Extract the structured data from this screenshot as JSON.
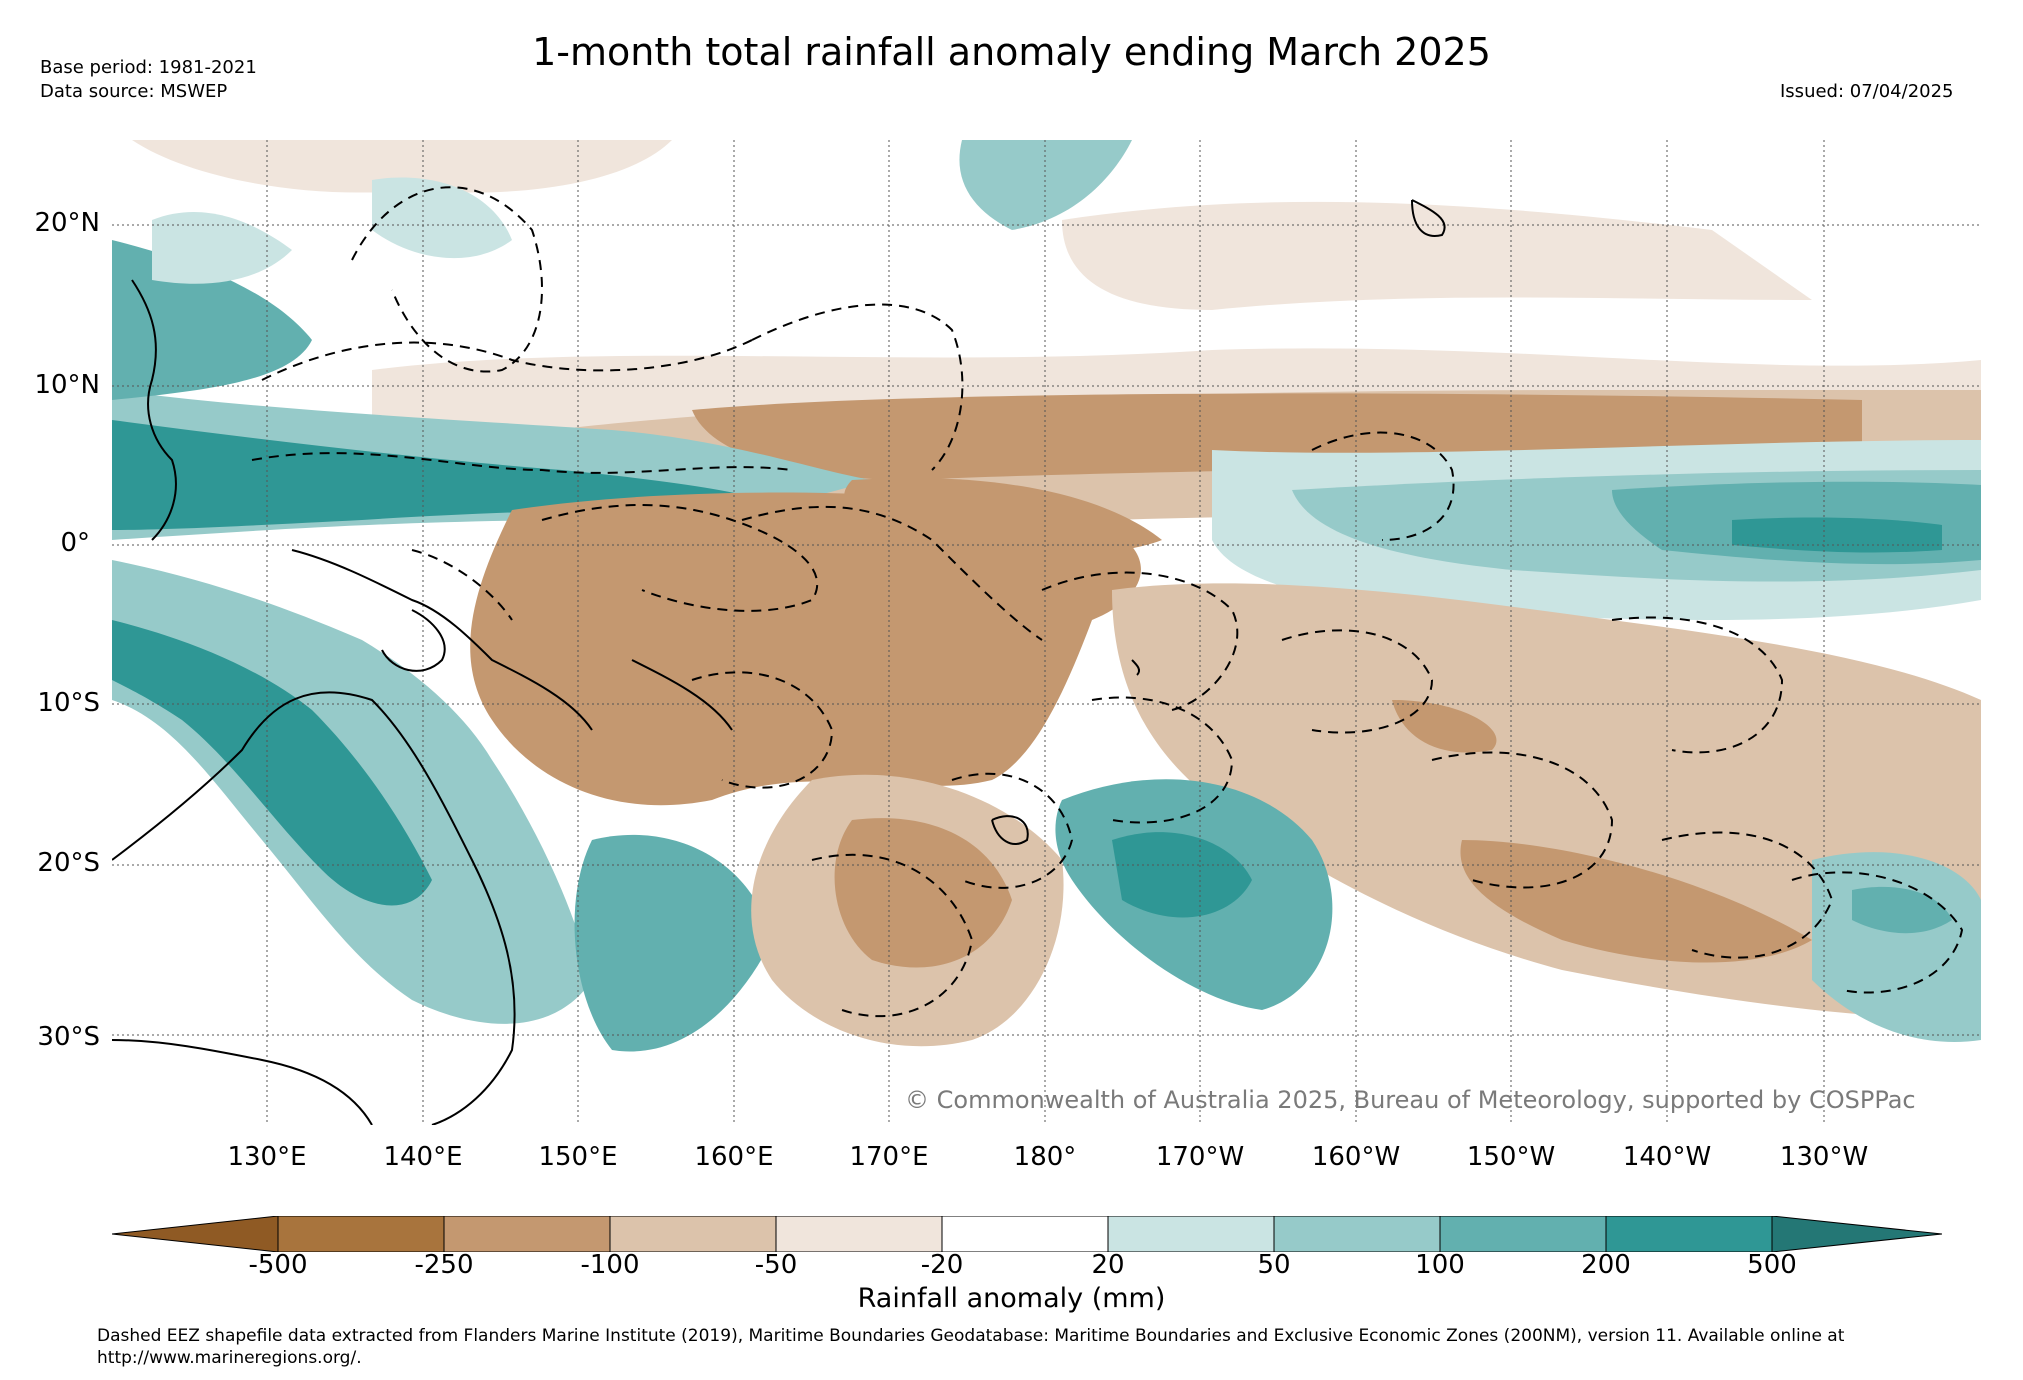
{
  "header": {
    "title": "1-month total rainfall anomaly ending March 2025",
    "base_period": "Base period: 1981-2021",
    "data_source": "Data source: MSWEP",
    "issued": "Issued: 07/04/2025"
  },
  "map": {
    "lat_labels": [
      "20°N",
      "10°N",
      "0°",
      "10°S",
      "20°S",
      "30°S"
    ],
    "lon_labels": [
      "130°E",
      "140°E",
      "150°E",
      "160°E",
      "170°E",
      "180°",
      "170°W",
      "160°W",
      "150°W",
      "140°W",
      "130°W"
    ],
    "copyright": "© Commonwealth of Australia 2025, Bureau of Meteorology, supported by COSPPac"
  },
  "colorbar": {
    "label": "Rainfall anomaly (mm)",
    "ticks": [
      "-500",
      "-250",
      "-100",
      "-50",
      "-20",
      "20",
      "50",
      "100",
      "200",
      "500"
    ],
    "colors": {
      "lt_-500": "#8f5a24",
      "-500_-250": "#a8743d",
      "-250_-100": "#c49870",
      "-100_-50": "#dcc3ab",
      "-50_-20": "#f0e5dc",
      "-20_20": "#ffffff",
      "20_50": "#cae4e3",
      "50_100": "#96cac9",
      "100_200": "#62b0af",
      "200_500": "#2f9795",
      "gt_500": "#247775"
    }
  },
  "footnote": "Dashed EEZ shapefile data extracted from Flanders Marine Institute (2019), Maritime Boundaries Geodatabase: Maritime Boundaries and Exclusive Economic Zones (200NM), version 11. Available online at http://www.marineregions.org/."
}
